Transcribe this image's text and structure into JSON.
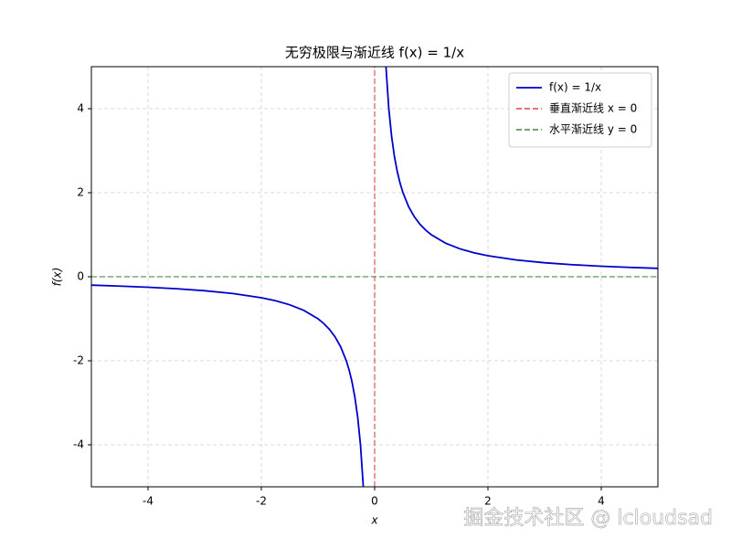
{
  "chart_data": {
    "type": "line",
    "title": "无穷极限与渐近线 f(x) = 1/x",
    "x_label": "x",
    "y_label": "f(x)",
    "xlim": [
      -5,
      5
    ],
    "ylim": [
      -5,
      5
    ],
    "xticks": [
      -4,
      -2,
      0,
      2,
      4
    ],
    "yticks": [
      -4,
      -2,
      0,
      2,
      4
    ],
    "grid": true,
    "legend": "upper right",
    "watermark": "掘金技术社区 @ lcloudsad",
    "series": [
      {
        "name": "f(x) = 1/x",
        "color": "#0000cc",
        "linestyle": "solid",
        "x": [
          -5,
          -4.5,
          -4,
          -3.5,
          -3,
          -2.5,
          -2,
          -1.75,
          -1.5,
          -1.25,
          -1,
          -0.9,
          -0.8,
          -0.7,
          -0.6,
          -0.5,
          -0.45,
          -0.4,
          -0.35,
          -0.3,
          -0.25,
          -0.2,
          null,
          0.2,
          0.25,
          0.3,
          0.35,
          0.4,
          0.45,
          0.5,
          0.6,
          0.7,
          0.8,
          0.9,
          1,
          1.25,
          1.5,
          1.75,
          2,
          2.5,
          3,
          3.5,
          4,
          4.5,
          5
        ],
        "values": [
          -0.2,
          -0.2222,
          -0.25,
          -0.2857,
          -0.3333,
          -0.4,
          -0.5,
          -0.5714,
          -0.6667,
          -0.8,
          -1,
          -1.1111,
          -1.25,
          -1.4286,
          -1.6667,
          -2,
          -2.2222,
          -2.5,
          -2.8571,
          -3.3333,
          -4,
          -5,
          null,
          5,
          4,
          3.3333,
          2.8571,
          2.5,
          2.2222,
          2,
          1.6667,
          1.4286,
          1.25,
          1.1111,
          1,
          0.8,
          0.6667,
          0.5714,
          0.5,
          0.4,
          0.3333,
          0.2857,
          0.25,
          0.2222,
          0.2
        ]
      },
      {
        "name": "垂直渐近线 x = 0",
        "color": "#e06060",
        "linestyle": "dashed",
        "x": [
          0,
          0
        ],
        "values": [
          -5,
          5
        ]
      },
      {
        "name": "水平渐近线 y = 0",
        "color": "#5a9a5a",
        "linestyle": "dashed",
        "x": [
          -5,
          5
        ],
        "values": [
          0,
          0
        ]
      }
    ]
  }
}
